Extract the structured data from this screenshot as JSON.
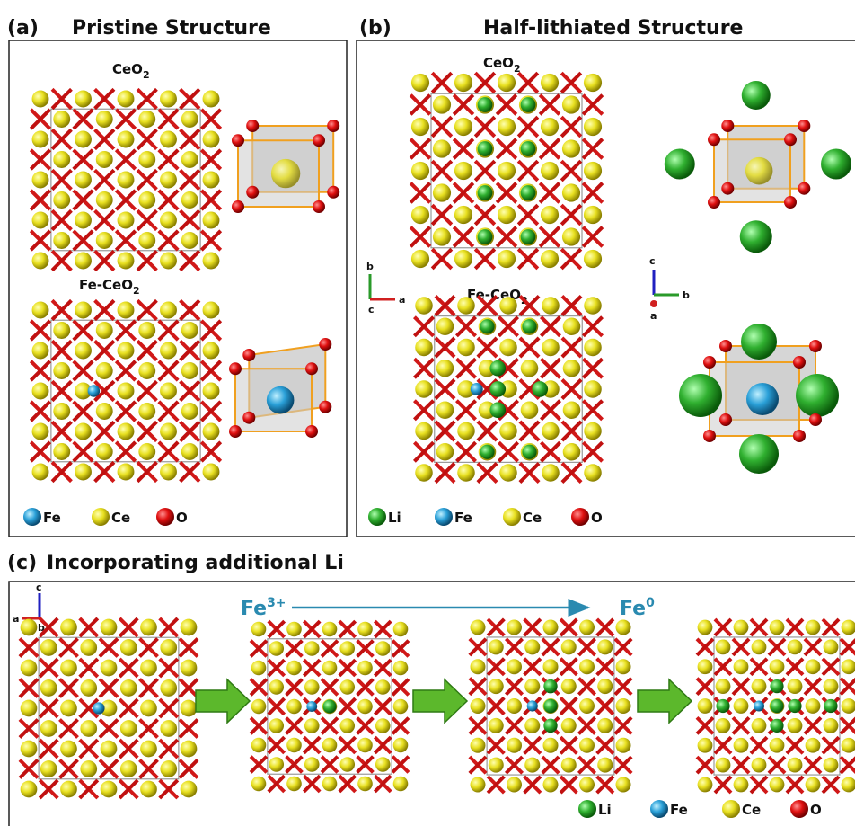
{
  "panel_a": {
    "label": "(a)",
    "title": "Pristine Structure",
    "structures": [
      {
        "base": "CeO",
        "sub": "2"
      },
      {
        "base": "Fe-CeO",
        "sub": "2"
      }
    ],
    "legend": [
      "Fe",
      "Ce",
      "O"
    ]
  },
  "panel_b": {
    "label": "(b)",
    "title": "Half-lithiated Structure",
    "structures": [
      {
        "base": "CeO",
        "sub": "2"
      },
      {
        "base": "Fe-CeO",
        "sub": "2"
      }
    ],
    "legend": [
      "Li",
      "Fe",
      "Ce",
      "O"
    ],
    "axes_left": {
      "up": "b",
      "origin": "c",
      "side": "a"
    },
    "axes_right": {
      "up": "c",
      "below": "a",
      "side": "b"
    }
  },
  "panel_c": {
    "label": "(c)",
    "title": "Incorporating additional Li",
    "start_state": {
      "base": "Fe",
      "sup": "3+"
    },
    "end_state": {
      "base": "Fe",
      "sup": "0"
    },
    "axes": {
      "up": "c",
      "side": "a",
      "below": "b"
    },
    "legend": [
      "Li",
      "Fe",
      "Ce",
      "O"
    ]
  }
}
